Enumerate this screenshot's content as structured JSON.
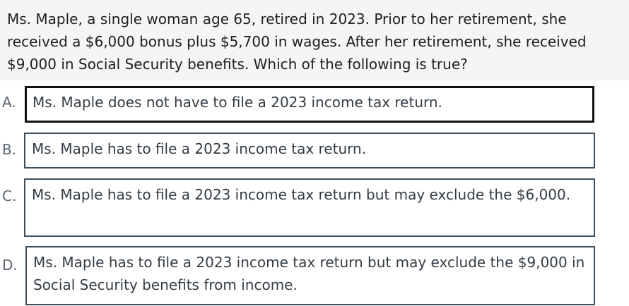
{
  "question": {
    "text": "Ms. Maple, a single woman age 65, retired in 2023. Prior to her retirement, she received a $6,000 bonus plus $5,700 in wages. After her retirement, she received $9,000 in Social Security benefits. Which of the following is true?"
  },
  "options": [
    {
      "letter": "A.",
      "text": "Ms. Maple does not have to file a 2023 income tax return.",
      "selected": true
    },
    {
      "letter": "B.",
      "text": "Ms. Maple has to file a 2023 income tax return.",
      "selected": false
    },
    {
      "letter": "C.",
      "text": "Ms. Maple has to file a 2023 income tax return but may exclude the $6,000.",
      "selected": false
    },
    {
      "letter": "D.",
      "text": "Ms. Maple has to file a 2023 income tax return but may exclude the $9,000 in Social Security benefits from income.",
      "selected": false
    }
  ]
}
